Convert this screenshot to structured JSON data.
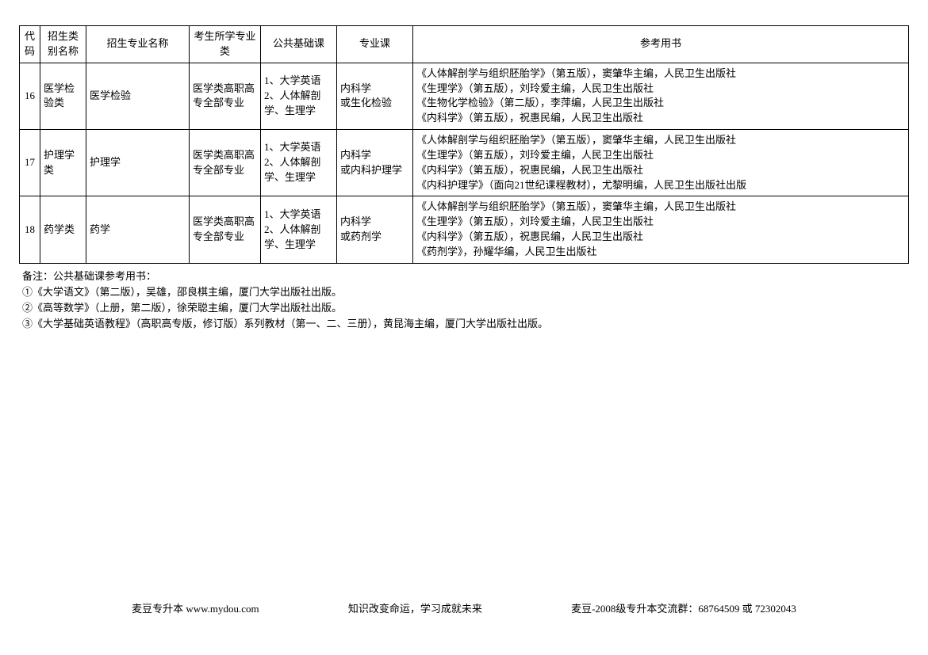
{
  "table": {
    "headers": [
      "代码",
      "招生类别名称",
      "招生专业名称",
      "考生所学专业类",
      "公共基础课",
      "专业课",
      "参考用书"
    ],
    "col_widths": [
      "26px",
      "58px",
      "130px",
      "90px",
      "96px",
      "96px",
      "auto"
    ],
    "rows": [
      {
        "code": "16",
        "category": "医学检验类",
        "major": "医学检验",
        "student_type": "医学类高职高专全部专业",
        "public_course": "1、大学英语 2、人体解剖学、生理学",
        "pro_course": "内科学\n或生化检验",
        "refs": [
          "《人体解剖学与组织胚胎学》（第五版），窦肇华主编，人民卫生出版社",
          "《生理学》（第五版），刘玲爱主编，人民卫生出版社",
          "《生物化学检验》（第二版），李萍编，人民卫生出版社",
          "《内科学》（第五版），祝惠民编，人民卫生出版社"
        ]
      },
      {
        "code": "17",
        "category": "护理学类",
        "major": "护理学",
        "student_type": "医学类高职高专全部专业",
        "public_course": "1、大学英语 2、人体解剖学、生理学",
        "pro_course": "内科学\n或内科护理学",
        "refs": [
          "《人体解剖学与组织胚胎学》（第五版），窦肇华主编，人民卫生出版社",
          "《生理学》（第五版），刘玲爱主编，人民卫生出版社",
          "《内科学》（第五版），祝惠民编，人民卫生出版社",
          "《内科护理学》（面向21世纪课程教材），尤黎明编，人民卫生出版社出版"
        ]
      },
      {
        "code": "18",
        "category": "药学类",
        "major": "药学",
        "student_type": "医学类高职高专全部专业",
        "public_course": "1、大学英语 2、人体解剖学、生理学",
        "pro_course": "内科学\n或药剂学",
        "refs": [
          "《人体解剖学与组织胚胎学》（第五版），窦肇华主编，人民卫生出版社",
          "《生理学》（第五版），刘玲爱主编，人民卫生出版社",
          "《内科学》（第五版），祝惠民编，人民卫生出版社",
          "《药剂学》，孙耀华编，人民卫生出版社"
        ]
      }
    ]
  },
  "notes": {
    "title": "备注：公共基础课参考用书：",
    "lines": [
      "①《大学语文》（第二版），吴雄，邵良棋主编，厦门大学出版社出版。",
      "②《高等数学》（上册，第二版），徐荣聪主编，厦门大学出版社出版。",
      "③《大学基础英语教程》（高职高专版，修订版）系列教材（第一、二、三册），黄昆海主编，厦门大学出版社出版。"
    ]
  },
  "footer": {
    "left": "麦豆专升本 www.mydou.com",
    "center": "知识改变命运，学习成就未来",
    "right": "麦豆-2008级专升本交流群：68764509 或 72302043"
  }
}
